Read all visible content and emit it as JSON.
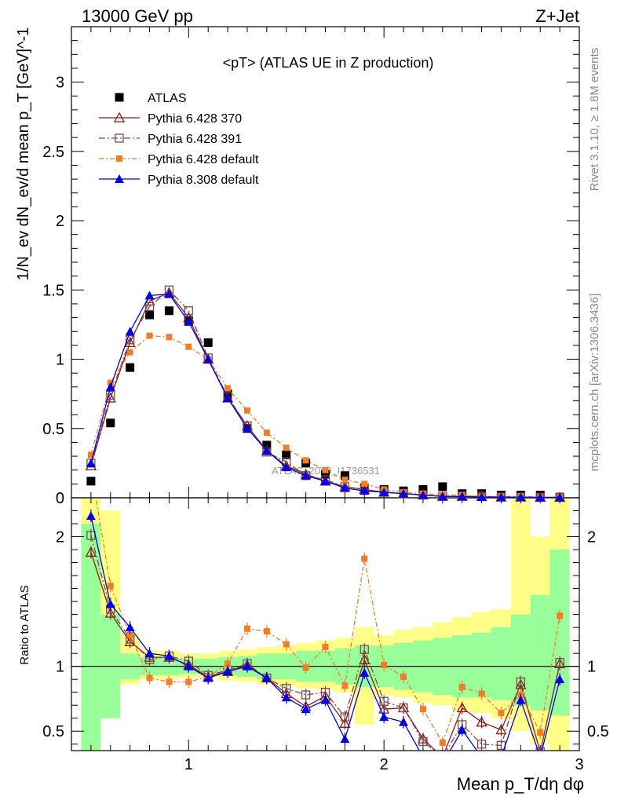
{
  "header": {
    "left": "13000 GeV pp",
    "right": "Z+Jet"
  },
  "side_labels": {
    "rivet": "Rivet 3.1.10, ≥ 1.8M events",
    "mcplots": "mcplots.cern.ch [arXiv:1306.3436]"
  },
  "watermark": "ATLAS_2019_I1736531",
  "chart_data": [
    {
      "type": "line",
      "title": "<pT> (ATLAS UE in Z production)",
      "ylabel": "1/N_ev dN_ev/d mean p_T [GeV]^-1",
      "xlim": [
        0.4,
        3.0
      ],
      "ylim": [
        0,
        3.4
      ],
      "yticks": [
        {
          "v": 0,
          "label": "0"
        },
        {
          "v": 0.5,
          "label": "0.5"
        },
        {
          "v": 1,
          "label": "1"
        },
        {
          "v": 1.5,
          "label": "1.5"
        },
        {
          "v": 2,
          "label": "2"
        },
        {
          "v": 2.5,
          "label": "2.5"
        },
        {
          "v": 3,
          "label": "3"
        }
      ],
      "x": [
        0.5,
        0.6,
        0.7,
        0.8,
        0.9,
        1.0,
        1.1,
        1.2,
        1.3,
        1.4,
        1.5,
        1.6,
        1.7,
        1.8,
        1.9,
        2.0,
        2.1,
        2.2,
        2.3,
        2.4,
        2.5,
        2.6,
        2.7,
        2.8,
        2.9
      ],
      "series": [
        {
          "name": "ATLAS",
          "color": "#000000",
          "marker": "square-filled",
          "values": [
            0.12,
            0.54,
            0.94,
            1.32,
            1.35,
            1.28,
            1.12,
            0.75,
            0.5,
            0.38,
            0.31,
            0.25,
            0.17,
            0.16,
            0.07,
            0.06,
            0.05,
            0.06,
            0.08,
            0.03,
            0.03,
            0.02,
            0.02,
            0.02,
            0.005
          ]
        },
        {
          "name": "Pythia 6.428 370",
          "color": "#8b1a1a",
          "marker": "triangle-open",
          "dash": "",
          "values": [
            0.23,
            0.72,
            1.12,
            1.42,
            1.48,
            1.3,
            1.0,
            0.72,
            0.52,
            0.34,
            0.23,
            0.17,
            0.12,
            0.08,
            0.06,
            0.04,
            0.03,
            0.02,
            0.01,
            0.01,
            0.01,
            0.005,
            0.005,
            0.003,
            0.003
          ]
        },
        {
          "name": "Pythia 6.428 391",
          "color": "#7a4a4a",
          "marker": "square-open",
          "dash": "8,3,2,3",
          "values": [
            0.25,
            0.74,
            1.14,
            1.38,
            1.5,
            1.35,
            1.01,
            0.73,
            0.52,
            0.33,
            0.26,
            0.16,
            0.13,
            0.08,
            0.06,
            0.04,
            0.03,
            0.02,
            0.01,
            0.01,
            0.01,
            0.005,
            0.005,
            0.003,
            0.003
          ]
        },
        {
          "name": "Pythia 6.428 default",
          "color": "#f07d2a",
          "marker": "square-filled-small",
          "dash": "6,3,2,3",
          "values": [
            0.31,
            0.83,
            1.05,
            1.17,
            1.16,
            1.09,
            1.0,
            0.79,
            0.63,
            0.47,
            0.36,
            0.27,
            0.2,
            0.13,
            0.1,
            0.06,
            0.04,
            0.03,
            0.02,
            0.02,
            0.01,
            0.01,
            0.01,
            0.005,
            0.005
          ]
        },
        {
          "name": "Pythia 8.308 default",
          "color": "#0000e0",
          "marker": "triangle-filled",
          "dash": "",
          "values": [
            0.25,
            0.8,
            1.2,
            1.46,
            1.47,
            1.27,
            1.0,
            0.72,
            0.5,
            0.34,
            0.22,
            0.16,
            0.12,
            0.07,
            0.05,
            0.04,
            0.03,
            0.02,
            0.01,
            0.01,
            0.005,
            0.005,
            0.005,
            0.003,
            0.003
          ]
        }
      ],
      "legend_position": "top-left"
    },
    {
      "type": "line",
      "ylabel": "Ratio to ATLAS",
      "xlabel": "Mean p_T/dη dφ",
      "xlim": [
        0.4,
        3.0
      ],
      "ylim": [
        0.35,
        2.3
      ],
      "xticks": [
        {
          "v": 1,
          "label": "1"
        },
        {
          "v": 2,
          "label": "2"
        },
        {
          "v": 3,
          "label": "3"
        }
      ],
      "yticks": [
        {
          "v": 0.5,
          "label": "0.5"
        },
        {
          "v": 1,
          "label": "1"
        },
        {
          "v": 2,
          "label": "2"
        }
      ],
      "x": [
        0.5,
        0.6,
        0.7,
        0.8,
        0.9,
        1.0,
        1.1,
        1.2,
        1.3,
        1.4,
        1.5,
        1.6,
        1.7,
        1.8,
        1.9,
        2.0,
        2.1,
        2.2,
        2.3,
        2.4,
        2.5,
        2.6,
        2.7,
        2.8,
        2.9
      ],
      "uncertainty_bands": {
        "stat_green": [
          [
            0.35,
            2.1
          ],
          [
            0.6,
            1.4
          ],
          [
            0.9,
            1.1
          ],
          [
            0.93,
            1.07
          ],
          [
            0.93,
            1.07
          ],
          [
            0.94,
            1.06
          ],
          [
            0.94,
            1.06
          ],
          [
            0.93,
            1.07
          ],
          [
            0.92,
            1.08
          ],
          [
            0.9,
            1.1
          ],
          [
            0.9,
            1.1
          ],
          [
            0.88,
            1.12
          ],
          [
            0.88,
            1.12
          ],
          [
            0.86,
            1.14
          ],
          [
            0.84,
            1.16
          ],
          [
            0.84,
            1.16
          ],
          [
            0.82,
            1.18
          ],
          [
            0.8,
            1.2
          ],
          [
            0.78,
            1.22
          ],
          [
            0.76,
            1.24
          ],
          [
            0.76,
            1.26
          ],
          [
            0.74,
            1.3
          ],
          [
            0.7,
            1.4
          ],
          [
            0.66,
            1.55
          ],
          [
            0.62,
            1.9
          ]
        ],
        "total_yellow": [
          [
            0.35,
            2.3
          ],
          [
            0.8,
            2.2
          ],
          [
            0.86,
            1.25
          ],
          [
            0.9,
            1.12
          ],
          [
            0.9,
            1.12
          ],
          [
            0.91,
            1.1
          ],
          [
            0.91,
            1.1
          ],
          [
            0.89,
            1.12
          ],
          [
            0.88,
            1.13
          ],
          [
            0.86,
            1.15
          ],
          [
            0.85,
            1.16
          ],
          [
            0.83,
            1.18
          ],
          [
            0.82,
            1.2
          ],
          [
            0.8,
            1.22
          ],
          [
            0.55,
            1.3
          ],
          [
            0.78,
            1.24
          ],
          [
            0.76,
            1.28
          ],
          [
            0.72,
            1.3
          ],
          [
            0.7,
            1.34
          ],
          [
            0.66,
            1.38
          ],
          [
            0.64,
            1.42
          ],
          [
            0.6,
            1.44
          ],
          [
            0.5,
            2.3
          ],
          [
            0.4,
            2.0
          ],
          [
            0.35,
            2.3
          ]
        ]
      },
      "series": [
        {
          "name": "Pythia 6.428 370",
          "color": "#8b1a1a",
          "marker": "triangle-open",
          "dash": "",
          "values": [
            1.88,
            1.41,
            1.19,
            1.07,
            1.07,
            1.01,
            0.92,
            0.96,
            1.01,
            0.91,
            0.79,
            0.69,
            0.77,
            0.56,
            1.05,
            0.67,
            0.68,
            0.44,
            0.3,
            0.68,
            0.57,
            0.51,
            0.86,
            0.34,
            1.02
          ]
        },
        {
          "name": "Pythia 6.428 391",
          "color": "#7a4a4a",
          "marker": "square-open",
          "dash": "8,3,2,3",
          "values": [
            2.01,
            1.44,
            1.21,
            1.05,
            1.08,
            1.04,
            0.93,
            0.97,
            1.02,
            0.91,
            0.83,
            0.78,
            0.8,
            0.61,
            1.13,
            0.73,
            0.68,
            0.42,
            0.3,
            0.55,
            0.4,
            0.39,
            0.88,
            0.34,
            1.03
          ]
        },
        {
          "name": "Pythia 6.428 default",
          "color": "#f07d2a",
          "marker": "square-filled-small",
          "dash": "6,3,2,3",
          "values": [
            2.53,
            1.62,
            1.24,
            0.91,
            0.88,
            0.88,
            0.92,
            1.02,
            1.29,
            1.27,
            1.17,
            0.99,
            1.15,
            0.85,
            1.83,
            1.01,
            0.92,
            0.67,
            0.41,
            0.84,
            0.79,
            0.64,
            0.78,
            0.49,
            1.39
          ]
        },
        {
          "name": "Pythia 8.308 default",
          "color": "#0000e0",
          "marker": "triangle-filled",
          "dash": "",
          "values": [
            2.16,
            1.48,
            1.3,
            1.1,
            1.08,
            1.0,
            0.91,
            0.96,
            1.0,
            0.91,
            0.76,
            0.67,
            0.74,
            0.44,
            0.95,
            0.61,
            0.57,
            0.3,
            0.25,
            0.51,
            0.3,
            0.3,
            0.74,
            0.3,
            0.9
          ]
        }
      ]
    }
  ]
}
